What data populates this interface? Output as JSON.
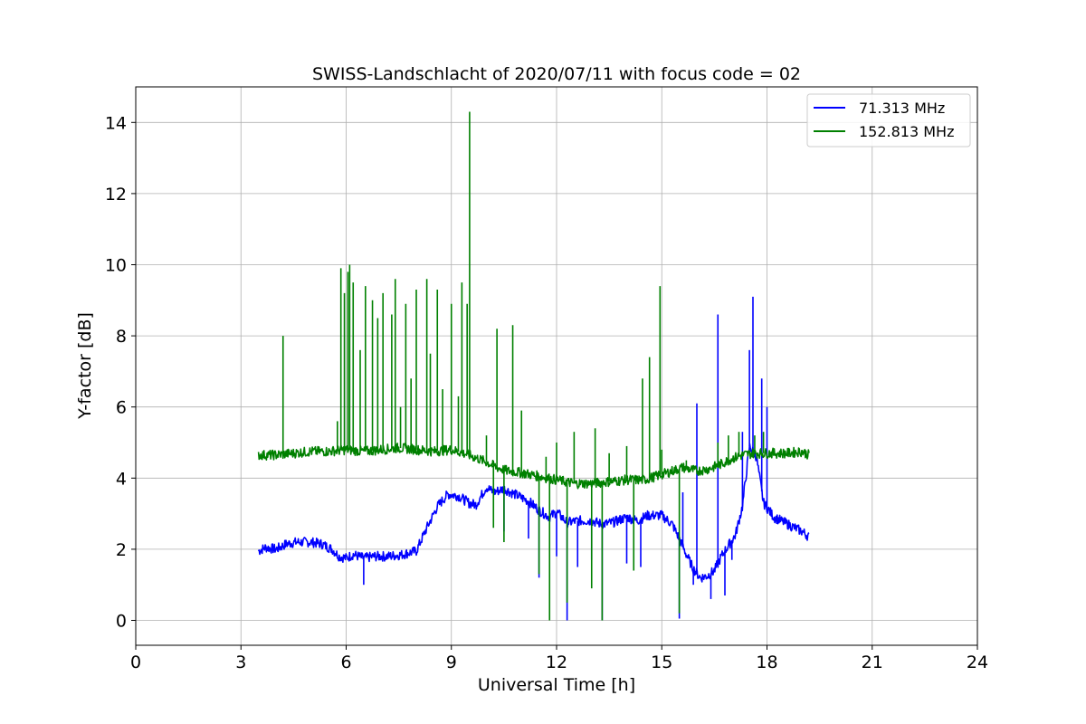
{
  "chart_data": {
    "type": "line",
    "title": "SWISS-Landschlacht of 2020/07/11 with focus code = 02",
    "xlabel": "Universal Time [h]",
    "ylabel": "Y-factor [dB]",
    "xlim": [
      0,
      24
    ],
    "ylim": [
      -0.7,
      15
    ],
    "xticks": [
      0,
      3,
      6,
      9,
      12,
      15,
      18,
      21,
      24
    ],
    "yticks": [
      0,
      2,
      4,
      6,
      8,
      10,
      12,
      14
    ],
    "grid": true,
    "legend_position": "top-right",
    "series": [
      {
        "name": "71.313 MHz",
        "color": "#0000ff",
        "points": [
          [
            3.5,
            1.95
          ],
          [
            3.7,
            2.05
          ],
          [
            4.0,
            2.0
          ],
          [
            4.3,
            2.15
          ],
          [
            4.6,
            2.2
          ],
          [
            5.0,
            2.2
          ],
          [
            5.3,
            2.15
          ],
          [
            5.6,
            2.0
          ],
          [
            5.8,
            1.8
          ],
          [
            6.0,
            1.75
          ],
          [
            6.2,
            1.85
          ],
          [
            6.5,
            1.75
          ],
          [
            6.8,
            1.8
          ],
          [
            7.2,
            1.8
          ],
          [
            7.6,
            1.85
          ],
          [
            8.0,
            1.95
          ],
          [
            8.3,
            2.6
          ],
          [
            8.6,
            3.2
          ],
          [
            8.9,
            3.55
          ],
          [
            9.2,
            3.5
          ],
          [
            9.5,
            3.3
          ],
          [
            9.7,
            3.25
          ],
          [
            10.0,
            3.75
          ],
          [
            10.2,
            3.6
          ],
          [
            10.5,
            3.7
          ],
          [
            10.8,
            3.55
          ],
          [
            11.2,
            3.35
          ],
          [
            11.5,
            3.1
          ],
          [
            11.8,
            2.9
          ],
          [
            12.0,
            3.05
          ],
          [
            12.3,
            2.75
          ],
          [
            12.6,
            2.8
          ],
          [
            13.0,
            2.8
          ],
          [
            13.3,
            2.7
          ],
          [
            13.6,
            2.75
          ],
          [
            14.0,
            2.9
          ],
          [
            14.3,
            2.8
          ],
          [
            14.6,
            2.95
          ],
          [
            15.0,
            2.95
          ],
          [
            15.3,
            2.7
          ],
          [
            15.5,
            2.3
          ],
          [
            15.7,
            1.85
          ],
          [
            15.9,
            1.45
          ],
          [
            16.1,
            1.2
          ],
          [
            16.3,
            1.25
          ],
          [
            16.5,
            1.4
          ],
          [
            16.7,
            1.8
          ],
          [
            16.9,
            2.1
          ],
          [
            17.1,
            2.4
          ],
          [
            17.3,
            3.2
          ],
          [
            17.5,
            4.9
          ],
          [
            17.7,
            4.6
          ],
          [
            17.9,
            3.3
          ],
          [
            18.2,
            2.9
          ],
          [
            18.5,
            2.75
          ],
          [
            18.8,
            2.6
          ],
          [
            19.0,
            2.5
          ],
          [
            19.2,
            2.35
          ]
        ],
        "spikes": [
          [
            6.5,
            1.0
          ],
          [
            10.5,
            2.5
          ],
          [
            11.2,
            2.3
          ],
          [
            11.5,
            1.2
          ],
          [
            12.0,
            1.8
          ],
          [
            12.3,
            0.0
          ],
          [
            12.6,
            1.5
          ],
          [
            13.0,
            1.7
          ],
          [
            13.3,
            0.0
          ],
          [
            14.0,
            1.6
          ],
          [
            14.4,
            1.5
          ],
          [
            15.5,
            0.05
          ],
          [
            15.6,
            3.6
          ],
          [
            15.9,
            1.0
          ],
          [
            16.0,
            6.1
          ],
          [
            16.4,
            0.6
          ],
          [
            16.6,
            8.6
          ],
          [
            16.8,
            0.7
          ],
          [
            17.0,
            1.7
          ],
          [
            17.3,
            5.3
          ],
          [
            17.5,
            7.6
          ],
          [
            17.6,
            9.1
          ],
          [
            17.85,
            6.8
          ],
          [
            18.0,
            6.0
          ]
        ]
      },
      {
        "name": "152.813 MHz",
        "color": "#008000",
        "points": [
          [
            3.5,
            4.65
          ],
          [
            4.0,
            4.65
          ],
          [
            4.5,
            4.7
          ],
          [
            5.0,
            4.75
          ],
          [
            5.5,
            4.75
          ],
          [
            6.0,
            4.8
          ],
          [
            6.5,
            4.75
          ],
          [
            7.0,
            4.8
          ],
          [
            7.5,
            4.85
          ],
          [
            8.0,
            4.8
          ],
          [
            8.5,
            4.75
          ],
          [
            9.0,
            4.8
          ],
          [
            9.5,
            4.65
          ],
          [
            10.0,
            4.45
          ],
          [
            10.3,
            4.3
          ],
          [
            10.6,
            4.2
          ],
          [
            11.0,
            4.15
          ],
          [
            11.5,
            4.05
          ],
          [
            12.0,
            3.95
          ],
          [
            12.5,
            3.85
          ],
          [
            13.0,
            3.85
          ],
          [
            13.5,
            3.9
          ],
          [
            14.0,
            3.95
          ],
          [
            14.5,
            3.95
          ],
          [
            15.0,
            4.1
          ],
          [
            15.3,
            4.2
          ],
          [
            15.6,
            4.3
          ],
          [
            16.0,
            4.2
          ],
          [
            16.3,
            4.25
          ],
          [
            16.6,
            4.35
          ],
          [
            17.0,
            4.55
          ],
          [
            17.3,
            4.65
          ],
          [
            17.6,
            4.7
          ],
          [
            18.0,
            4.7
          ],
          [
            18.3,
            4.7
          ],
          [
            18.6,
            4.7
          ],
          [
            19.0,
            4.75
          ],
          [
            19.2,
            4.65
          ]
        ],
        "spikes": [
          [
            4.2,
            8.0
          ],
          [
            5.75,
            5.6
          ],
          [
            5.85,
            9.9
          ],
          [
            5.95,
            9.2
          ],
          [
            6.05,
            9.8
          ],
          [
            6.1,
            10.0
          ],
          [
            6.2,
            9.5
          ],
          [
            6.4,
            7.6
          ],
          [
            6.55,
            9.4
          ],
          [
            6.75,
            9.0
          ],
          [
            6.9,
            8.5
          ],
          [
            7.05,
            9.2
          ],
          [
            7.3,
            8.6
          ],
          [
            7.4,
            9.6
          ],
          [
            7.55,
            6.0
          ],
          [
            7.7,
            8.9
          ],
          [
            7.85,
            6.8
          ],
          [
            8.0,
            9.3
          ],
          [
            8.3,
            9.6
          ],
          [
            8.4,
            7.5
          ],
          [
            8.6,
            9.3
          ],
          [
            8.75,
            6.5
          ],
          [
            9.0,
            8.9
          ],
          [
            9.2,
            6.3
          ],
          [
            9.3,
            9.5
          ],
          [
            9.45,
            8.9
          ],
          [
            9.52,
            14.3
          ],
          [
            10.0,
            5.2
          ],
          [
            10.2,
            2.6
          ],
          [
            10.3,
            8.2
          ],
          [
            10.5,
            2.2
          ],
          [
            10.75,
            8.3
          ],
          [
            11.0,
            5.9
          ],
          [
            11.5,
            1.3
          ],
          [
            11.7,
            4.6
          ],
          [
            11.8,
            0.0
          ],
          [
            12.0,
            5.0
          ],
          [
            12.3,
            0.5
          ],
          [
            12.5,
            5.3
          ],
          [
            13.0,
            0.9
          ],
          [
            13.1,
            5.4
          ],
          [
            13.3,
            0.0
          ],
          [
            13.5,
            4.7
          ],
          [
            14.0,
            4.9
          ],
          [
            14.2,
            1.4
          ],
          [
            14.45,
            6.8
          ],
          [
            14.65,
            7.4
          ],
          [
            14.95,
            9.4
          ],
          [
            15.0,
            4.8
          ],
          [
            15.5,
            0.2
          ],
          [
            15.7,
            4.5
          ],
          [
            16.6,
            5.0
          ],
          [
            16.9,
            5.2
          ],
          [
            17.2,
            5.3
          ],
          [
            17.65,
            5.2
          ],
          [
            17.9,
            5.3
          ]
        ]
      }
    ]
  }
}
